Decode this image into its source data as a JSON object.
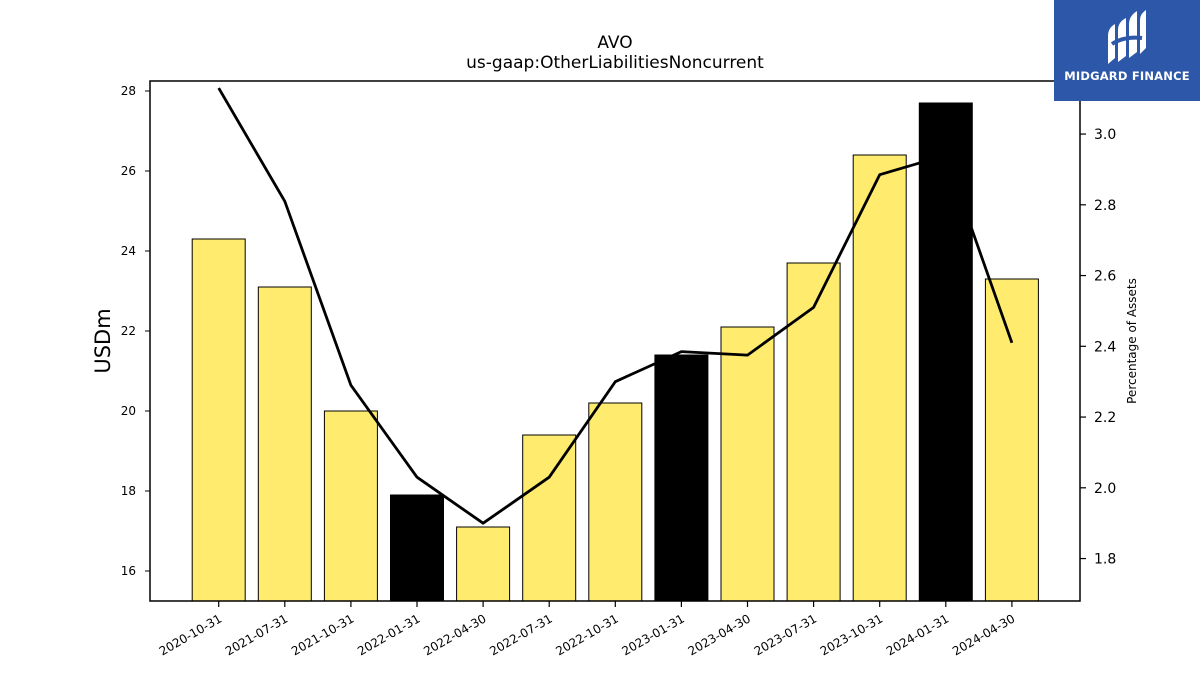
{
  "logo": {
    "text": "MIDGARD FINANCE"
  },
  "chart_data": {
    "type": "bar",
    "title": "AVO",
    "subtitle": "us-gaap:OtherLiabilitiesNoncurrent",
    "ylabel": "USDm",
    "ylabel_right": "Percentage of Assets",
    "categories": [
      "2020-10-31",
      "2021-07-31",
      "2021-10-31",
      "2022-01-31",
      "2022-04-30",
      "2022-07-31",
      "2022-10-31",
      "2023-01-31",
      "2023-04-30",
      "2023-07-31",
      "2023-10-31",
      "2024-01-31",
      "2024-04-30"
    ],
    "series": [
      {
        "values": [
          24.3,
          23.1,
          20.0,
          17.9,
          17.1,
          19.4,
          20.2,
          21.4,
          22.1,
          23.7,
          26.4,
          27.7,
          23.3
        ],
        "highlight": [
          false,
          false,
          false,
          true,
          false,
          false,
          false,
          true,
          false,
          false,
          false,
          true,
          false
        ],
        "color": "#ffec6e",
        "highlight_color": "#000000"
      },
      {
        "axis": "right",
        "type": "line",
        "color": "#000000",
        "values": [
          3.13,
          2.81,
          2.29,
          2.03,
          1.9,
          2.03,
          2.3,
          2.385,
          2.375,
          2.51,
          2.885,
          2.94,
          2.41
        ]
      }
    ],
    "ylim": [
      15.25,
      28.25
    ],
    "ylim_right": [
      1.68,
      3.15
    ],
    "yticks": [
      16,
      18,
      20,
      22,
      24,
      26,
      28
    ],
    "yticks_right": [
      1.8,
      2.0,
      2.2,
      2.4,
      2.6,
      2.8,
      3.0
    ],
    "grid": false,
    "legend": "none"
  }
}
